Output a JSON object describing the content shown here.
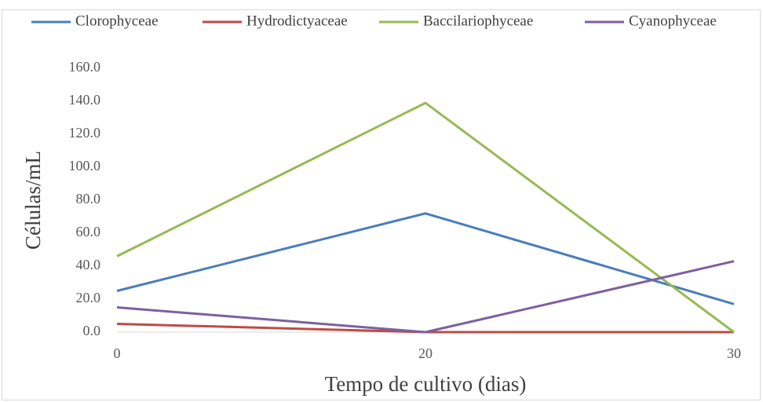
{
  "chart_data": {
    "type": "line",
    "x_label": "Tempo de cultivo (dias)",
    "y_label": "Células/mL",
    "categories": [
      "0",
      "20",
      "30"
    ],
    "series": [
      {
        "name": "Clorophyceae",
        "color": "#4a7ebb",
        "values": [
          25,
          72,
          17
        ]
      },
      {
        "name": "Hydrodictyaceae",
        "color": "#be4b48",
        "values": [
          5,
          0,
          0
        ]
      },
      {
        "name": "Baccilariophyceae",
        "color": "#98b954",
        "values": [
          46,
          139,
          0
        ]
      },
      {
        "name": "Cyanophyceae",
        "color": "#7d60a0",
        "values": [
          15,
          0,
          43
        ]
      }
    ],
    "ylim": [
      0,
      160
    ],
    "yticks": [
      {
        "value": 0,
        "label": "0.0"
      },
      {
        "value": 20,
        "label": "20.0"
      },
      {
        "value": 40,
        "label": "40.0"
      },
      {
        "value": 60,
        "label": "60.0"
      },
      {
        "value": 80,
        "label": "80.0"
      },
      {
        "value": 100,
        "label": "100.0"
      },
      {
        "value": 120,
        "label": "120.0"
      },
      {
        "value": 140,
        "label": "140.0"
      },
      {
        "value": 160,
        "label": "160.0"
      }
    ],
    "grid": false,
    "legend": "top"
  }
}
